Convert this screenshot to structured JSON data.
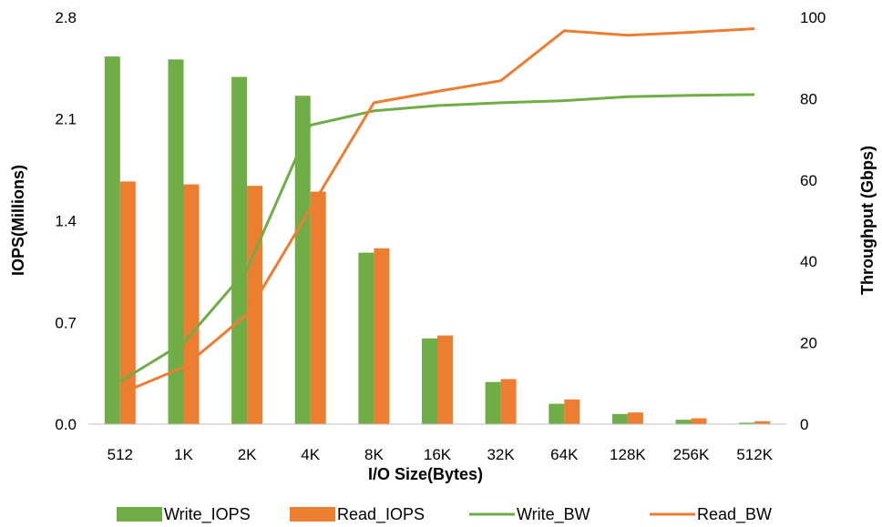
{
  "chart_data": {
    "type": "bar",
    "categories": [
      "512",
      "1K",
      "2K",
      "4K",
      "8K",
      "16K",
      "32K",
      "64K",
      "128K",
      "256K",
      "512K"
    ],
    "series": [
      {
        "name": "Write_IOPS",
        "kind": "bar",
        "axis": "left",
        "color": "#70ad47",
        "values": [
          2.53,
          2.51,
          2.39,
          2.26,
          1.18,
          0.59,
          0.29,
          0.14,
          0.07,
          0.03,
          0.01
        ]
      },
      {
        "name": "Read_IOPS",
        "kind": "bar",
        "axis": "left",
        "color": "#ed7d31",
        "values": [
          1.67,
          1.65,
          1.64,
          1.6,
          1.21,
          0.61,
          0.31,
          0.17,
          0.08,
          0.04,
          0.02
        ]
      },
      {
        "name": "Write_BW",
        "kind": "line",
        "axis": "right",
        "color": "#70ad47",
        "values": [
          10.5,
          20,
          38,
          73.5,
          77,
          78.3,
          79,
          79.5,
          80.5,
          80.8,
          81
        ]
      },
      {
        "name": "Read_BW",
        "kind": "line",
        "axis": "right",
        "color": "#ed7d31",
        "values": [
          7.5,
          14,
          27,
          53,
          79,
          81.8,
          84.4,
          96.7,
          95.6,
          96.3,
          97.2
        ]
      }
    ],
    "xlabel": "I/O Size(Bytes)",
    "ylabel": "IOPS(Millions)",
    "y2label": "Throughput (Gbps)",
    "ylim": [
      0,
      2.8
    ],
    "yticks": [
      "0.0",
      "0.7",
      "1.4",
      "2.1",
      "2.8"
    ],
    "y2lim": [
      0,
      100
    ],
    "y2ticks": [
      "0",
      "20",
      "40",
      "60",
      "80",
      "100"
    ],
    "grid": false,
    "legend": "bottom"
  }
}
